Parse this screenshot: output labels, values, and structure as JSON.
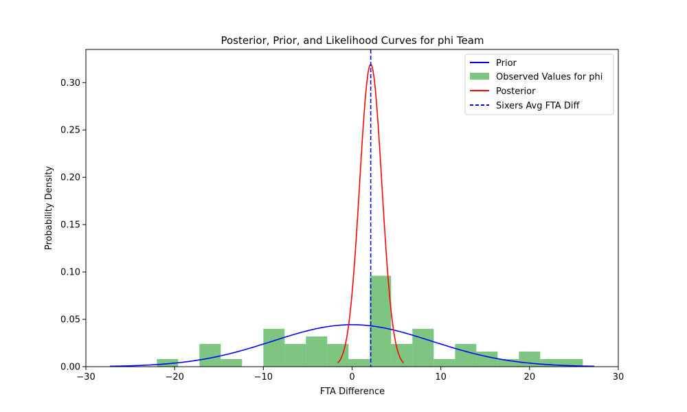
{
  "chart_data": {
    "type": "histogram+line",
    "title": "Posterior, Prior, and Likelihood Curves for phi Team",
    "xlabel": "FTA Difference",
    "ylabel": "Probability Density",
    "xlim": [
      -30,
      30
    ],
    "ylim": [
      0,
      0.335
    ],
    "x_ticks": [
      -30,
      -20,
      -10,
      0,
      10,
      20,
      30
    ],
    "y_ticks": [
      0.0,
      0.05,
      0.1,
      0.15,
      0.2,
      0.25,
      0.3
    ],
    "x_tick_labels": [
      "−30",
      "−20",
      "−10",
      "0",
      "10",
      "20",
      "30"
    ],
    "y_tick_labels": [
      "0.00",
      "0.05",
      "0.10",
      "0.15",
      "0.20",
      "0.25",
      "0.30"
    ],
    "legend_position": "top-right",
    "grid": false,
    "histogram": {
      "name": "Observed Values for phi",
      "color": "#4caf50",
      "bin_edges": [
        -22.0,
        -19.6,
        -17.2,
        -14.8,
        -12.4,
        -10.0,
        -7.6,
        -5.2,
        -2.8,
        -0.4,
        2.0,
        4.4,
        6.8,
        9.2,
        11.6,
        14.0,
        16.4,
        18.8,
        21.2,
        23.6,
        26.0
      ],
      "densities": [
        0.008,
        0.0,
        0.024,
        0.008,
        0.0,
        0.04,
        0.024,
        0.032,
        0.024,
        0.008,
        0.096,
        0.024,
        0.04,
        0.008,
        0.024,
        0.016,
        0.008,
        0.016,
        0.008,
        0.008
      ]
    },
    "prior": {
      "name": "Prior",
      "color": "#0000ff",
      "mean": 0,
      "sd": 9.0,
      "x_range": [
        -27.3,
        27.3
      ]
    },
    "posterior": {
      "name": "Posterior",
      "color": "#ff0000",
      "mean": 2.1,
      "sd": 1.25,
      "x_range": [
        -1.6,
        5.8
      ]
    },
    "vline": {
      "name": "Sixers Avg FTA Diff",
      "color": "#0000ff",
      "x": 2.1,
      "style": "dashed"
    }
  }
}
